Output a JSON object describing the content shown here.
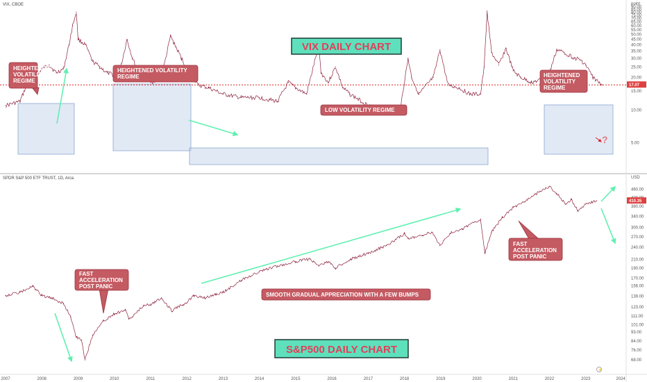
{
  "chart_data": [
    {
      "type": "line",
      "symbol": "VIX, CBOE",
      "unit_label": "point",
      "title": "VIX DAILY CHART",
      "price_badge": "17.07",
      "y_ticks": [
        "5.00",
        "10.00",
        "15.00",
        "20.00",
        "25.00",
        "30.00",
        "35.00",
        "40.00",
        "45.00",
        "50.00",
        "55.00",
        "60.00",
        "65.00",
        "70.00",
        "75.00",
        "80.00",
        "85.00",
        "90.00"
      ],
      "ylim": [
        3,
        92
      ],
      "x_range": [
        2007.0,
        2024.0
      ],
      "reference_line": 17.07,
      "x": [
        2007.0,
        2007.4,
        2007.55,
        2007.7,
        2007.85,
        2008.0,
        2008.2,
        2008.4,
        2008.6,
        2008.75,
        2008.85,
        2008.95,
        2009.0,
        2009.2,
        2009.4,
        2009.6,
        2009.8,
        2010.0,
        2010.2,
        2010.35,
        2010.5,
        2010.7,
        2011.0,
        2011.3,
        2011.55,
        2011.7,
        2011.85,
        2012.0,
        2012.3,
        2012.6,
        2013.0,
        2013.5,
        2014.0,
        2014.5,
        2014.8,
        2015.0,
        2015.3,
        2015.64,
        2015.7,
        2015.9,
        2016.1,
        2016.3,
        2016.5,
        2017.0,
        2017.5,
        2017.9,
        2018.1,
        2018.2,
        2018.4,
        2018.8,
        2018.98,
        2019.2,
        2019.5,
        2019.8,
        2020.1,
        2020.2,
        2020.28,
        2020.4,
        2020.6,
        2020.8,
        2021.0,
        2021.2,
        2021.5,
        2021.8,
        2022.0,
        2022.2,
        2022.4,
        2022.7,
        2022.85,
        2023.0,
        2023.2,
        2023.45
      ],
      "values": [
        11,
        12,
        16,
        24,
        20,
        24,
        26,
        22,
        24,
        40,
        60,
        80,
        45,
        40,
        28,
        25,
        22,
        21,
        27,
        45,
        30,
        21,
        18,
        20,
        48,
        38,
        30,
        24,
        17,
        16,
        14,
        13,
        13,
        12,
        18,
        16,
        14,
        40,
        22,
        18,
        25,
        16,
        14,
        11,
        10,
        11,
        30,
        20,
        14,
        20,
        36,
        17,
        16,
        14,
        14,
        25,
        82,
        34,
        26,
        37,
        23,
        20,
        18,
        19,
        22,
        36,
        34,
        30,
        29,
        26,
        20,
        17
      ]
    },
    {
      "type": "line",
      "symbol": "SPDR S&P 500 ETF TRUST, 1D, Arca",
      "unit_label": "USD",
      "title": "S&P500 DAILY CHART",
      "price_badge": "410.35",
      "y_ticks": [
        "68.00",
        "76.00",
        "84.00",
        "93.00",
        "101.00",
        "111.00",
        "123.00",
        "139.00",
        "156.00",
        "170.00",
        "190.00",
        "210.00",
        "240.00",
        "270.00",
        "300.00",
        "340.00",
        "380.00",
        "420.00",
        "460.00"
      ],
      "ylim": [
        62,
        500
      ],
      "x_range": [
        2007.0,
        2024.0
      ],
      "x_labels": [
        "2007",
        "2008",
        "2009",
        "2010",
        "2011",
        "2012",
        "2013",
        "2014",
        "2015",
        "2016",
        "2017",
        "2018",
        "2019",
        "2020",
        "2021",
        "2022",
        "2023",
        "2024"
      ],
      "x": [
        2007.0,
        2007.4,
        2007.75,
        2008.0,
        2008.3,
        2008.6,
        2008.8,
        2008.95,
        2009.1,
        2009.19,
        2009.4,
        2009.7,
        2010.0,
        2010.3,
        2010.4,
        2010.5,
        2010.8,
        2011.0,
        2011.3,
        2011.6,
        2011.75,
        2011.9,
        2012.2,
        2012.5,
        2012.8,
        2013.0,
        2013.5,
        2014.0,
        2014.5,
        2015.0,
        2015.4,
        2015.64,
        2015.9,
        2016.1,
        2016.5,
        2017.0,
        2017.5,
        2018.0,
        2018.1,
        2018.5,
        2018.75,
        2018.98,
        2019.3,
        2019.6,
        2019.95,
        2020.1,
        2020.22,
        2020.4,
        2020.7,
        2021.0,
        2021.3,
        2021.6,
        2021.99,
        2022.2,
        2022.45,
        2022.6,
        2022.79,
        2023.0,
        2023.3
      ],
      "values": [
        140,
        145,
        155,
        140,
        135,
        128,
        110,
        88,
        85,
        68,
        90,
        105,
        114,
        119,
        108,
        110,
        125,
        127,
        136,
        117,
        124,
        125,
        140,
        136,
        142,
        145,
        166,
        183,
        195,
        205,
        211,
        195,
        205,
        190,
        210,
        225,
        245,
        280,
        265,
        275,
        285,
        245,
        285,
        295,
        320,
        330,
        225,
        285,
        335,
        375,
        400,
        435,
        475,
        440,
        390,
        410,
        360,
        390,
        405
      ]
    }
  ],
  "annotations": {
    "vix_regime_1": [
      "HEIGHTENED",
      "VOLATILITY",
      "REGIME"
    ],
    "vix_regime_2": [
      "HEIGHTENED VOLATILITY",
      "REGIME"
    ],
    "vix_low_regime": "LOW VOLATILITY REGIME",
    "vix_regime_3": [
      "HEIGHTENED",
      "VOLATILITY",
      "REGIME"
    ],
    "vix_question": "?",
    "spy_accel_1": [
      "FAST",
      "ACCELERATION",
      "POST PANIC"
    ],
    "spy_smooth": "SMOOTH GRADUAL APPRECIATION WITH A FEW BUMPS",
    "spy_accel_2": [
      "FAST",
      "ACCELERATION",
      "POST PANIC"
    ]
  },
  "colors": {
    "candle": "#8b1f3a",
    "box_fill": "#c9d7ec",
    "box_stroke": "#7d9ac9",
    "callout_fill": "#c45a62",
    "callout_stroke": "#9a3440",
    "arrow": "#5ff0b0",
    "title_fill": "#5ee0bc",
    "title_text": "#e0405a",
    "ref_line": "#e02020",
    "badge": "#e04040"
  }
}
